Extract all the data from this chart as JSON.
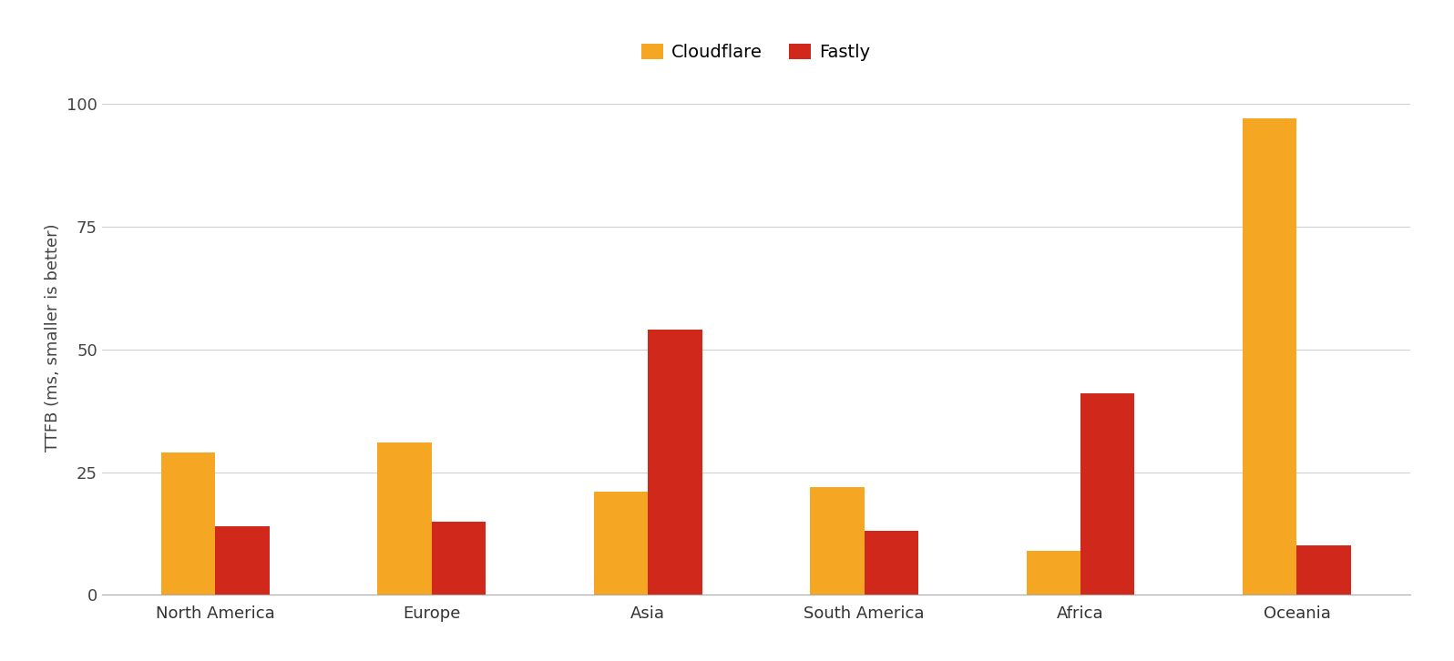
{
  "categories": [
    "North America",
    "Europe",
    "Asia",
    "South America",
    "Africa",
    "Oceania"
  ],
  "cloudflare_values": [
    29,
    31,
    21,
    22,
    9,
    97
  ],
  "fastly_values": [
    14,
    15,
    54,
    13,
    41,
    10
  ],
  "cloudflare_color": "#F5A623",
  "fastly_color": "#D0281A",
  "ylabel": "TTFB (ms, smaller is better)",
  "ylim": [
    0,
    105
  ],
  "yticks": [
    0,
    25,
    50,
    75,
    100
  ],
  "legend_labels": [
    "Cloudflare",
    "Fastly"
  ],
  "bar_width": 0.25,
  "background_color": "#ffffff",
  "grid_color": "#d0d0d0",
  "label_fontsize": 13,
  "tick_fontsize": 13,
  "legend_fontsize": 14
}
